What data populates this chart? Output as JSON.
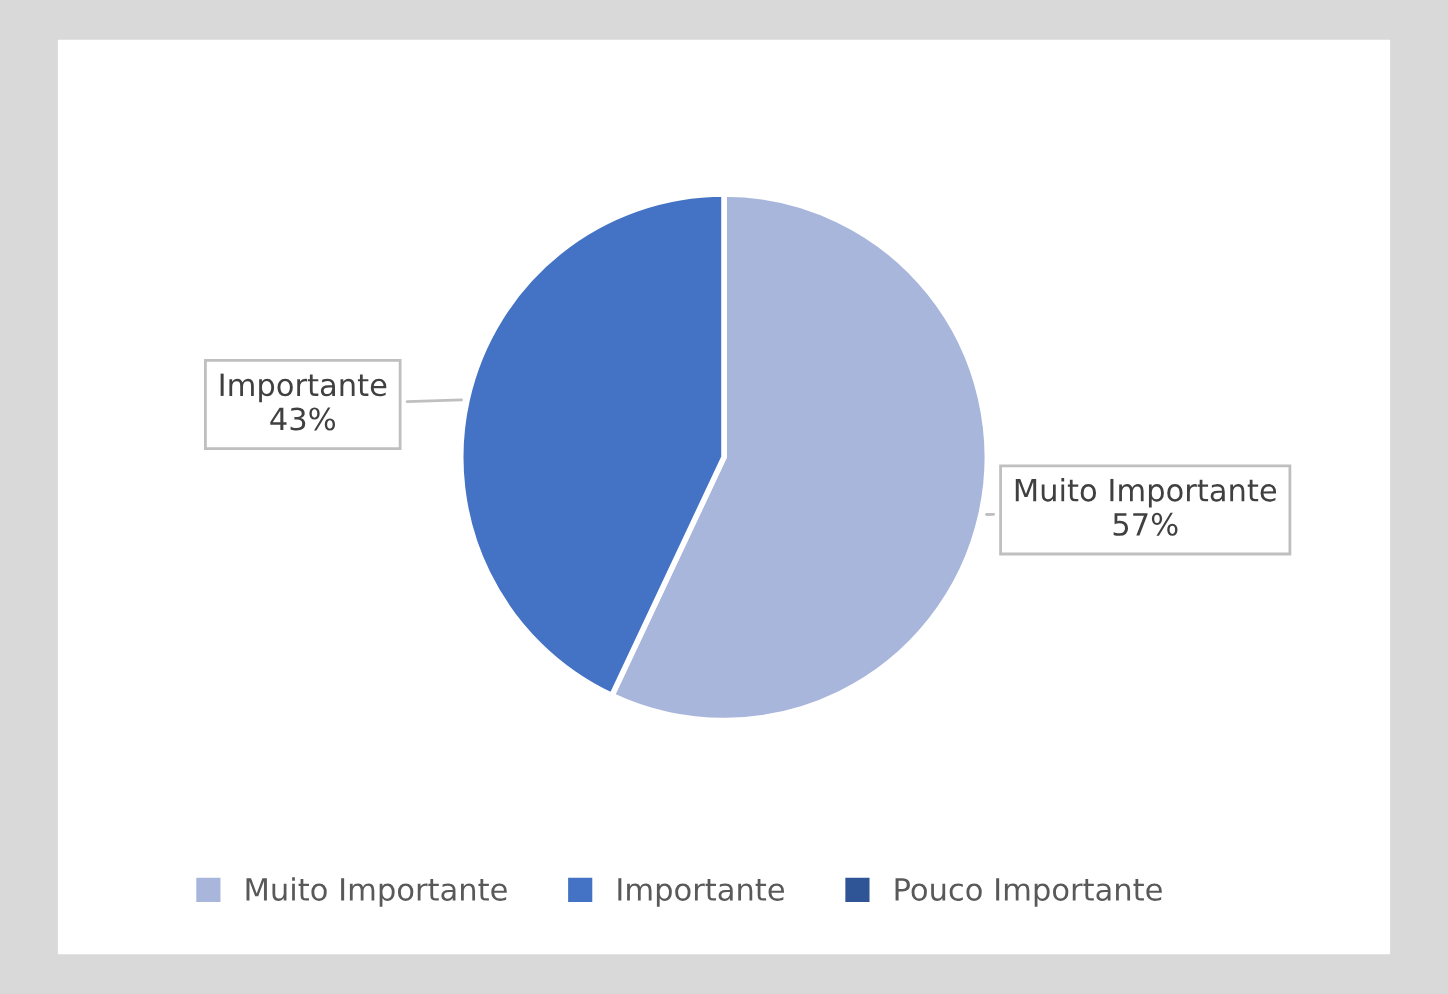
{
  "chart_data": {
    "type": "pie",
    "categories": [
      "Muito Importante",
      "Importante",
      "Pouco Importante"
    ],
    "values": [
      57,
      43,
      0
    ],
    "colors": [
      "#a9b6dc",
      "#4472c4",
      "#2f5597"
    ],
    "value_labels": [
      "57%",
      "43%",
      null
    ],
    "legend": "bottom"
  }
}
